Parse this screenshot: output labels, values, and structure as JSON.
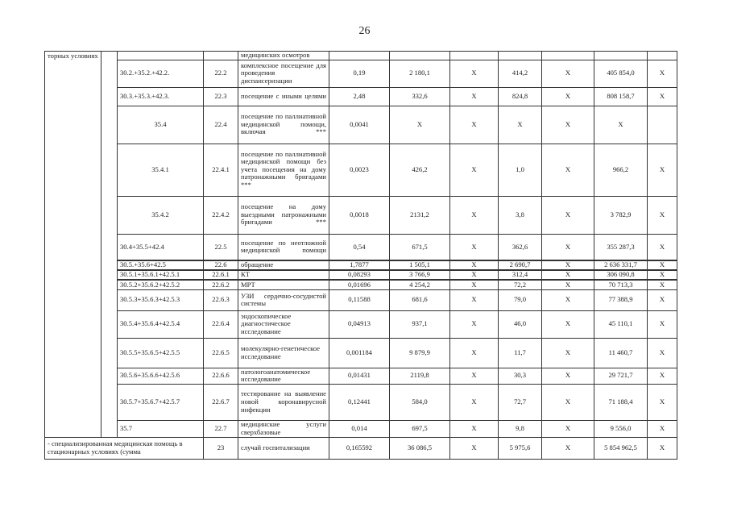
{
  "page_number": "26",
  "left_label": "торных условиях",
  "table": {
    "rows": [
      {
        "code": "",
        "num": "",
        "desc": "медицинских осмотров",
        "v": [
          "",
          "",
          "",
          "",
          "",
          "",
          "",
          ""
        ]
      },
      {
        "code": "30.2.+35.2.+42.2.",
        "num": "22.2",
        "desc": "комплексное посещение для проведения диспансеризации",
        "v": [
          "0,19",
          "2 180,1",
          "X",
          "414,2",
          "X",
          "405 854,0",
          "X"
        ]
      },
      {
        "code": "30.3.+35.3.+42.3.",
        "num": "22.3",
        "desc": "посещение с иными целями",
        "v": [
          "2,48",
          "332,6",
          "X",
          "824,8",
          "X",
          "808 158,7",
          "X"
        ]
      },
      {
        "code": "35.4",
        "num": "22.4",
        "desc": "посещение по паллиативной медицинской помощи, включая ***",
        "v": [
          "0,0041",
          "X",
          "X",
          "X",
          "X",
          "X",
          ""
        ],
        "center": true
      },
      {
        "code": "35.4.1",
        "num": "22.4.1",
        "desc": "посещение по паллиативной медицинской помощи без учета посещения на дому патронажными бригадами ***",
        "v": [
          "0,0023",
          "426,2",
          "X",
          "1,0",
          "X",
          "966,2",
          "X"
        ],
        "center": true
      },
      {
        "code": "35.4.2",
        "num": "22.4.2",
        "desc": "посещение на дому выездными патронажными бригадами ***",
        "v": [
          "0,0018",
          "2131,2",
          "X",
          "3,8",
          "X",
          "3 782,9",
          "X"
        ],
        "center": true
      },
      {
        "code": "30.4+35.5+42.4",
        "num": "22.5",
        "desc": "посещение по неотложной медицинской помощи",
        "v": [
          "0,54",
          "671,5",
          "X",
          "362,6",
          "X",
          "355 287,3",
          "X"
        ]
      },
      {
        "code": "30.5.+35.6+42.5",
        "num": "22.6",
        "desc": "обращение",
        "v": [
          "1,7877",
          "1 505,1",
          "X",
          "2 690,7",
          "X",
          "2 636 331,7",
          "X"
        ]
      },
      {
        "code": "30.5.1+35.6.1+42.5.1",
        "num": "22.6.1",
        "desc": "КТ",
        "v": [
          "0,08293",
          "3 766,9",
          "X",
          "312,4",
          "X",
          "306 090,8",
          "X"
        ]
      },
      {
        "code": "30.5.2+35.6.2+42.5.2",
        "num": "22.6.2",
        "desc": "МРТ",
        "v": [
          "0,01696",
          "4 254,2",
          "X",
          "72,2",
          "X",
          "70 713,3",
          "X"
        ]
      },
      {
        "code": "30.5.3+35.6.3+42.5.3",
        "num": "22.6.3",
        "desc": "УЗИ сердечно-сосудистой системы",
        "v": [
          "0,11588",
          "681,6",
          "X",
          "79,0",
          "X",
          "77 388,9",
          "X"
        ]
      },
      {
        "code": "30.5.4+35.6.4+42.5.4",
        "num": "22.6.4",
        "desc": "эндоскопическое диагностическое исследование",
        "v": [
          "0,04913",
          "937,1",
          "X",
          "46,0",
          "X",
          "45 110,1",
          "X"
        ]
      },
      {
        "code": "30.5.5+35.6.5+42.5.5",
        "num": "22.6.5",
        "desc": "молекулярно-генетическое исследование",
        "v": [
          "0,001184",
          "9 879,9",
          "X",
          "11,7",
          "X",
          "11 460,7",
          "X"
        ]
      },
      {
        "code": "30.5.6+35.6.6+42.5.6",
        "num": "22.6.6",
        "desc": "патологоанатомическое исследование",
        "v": [
          "0,01431",
          "2119,8",
          "X",
          "30,3",
          "X",
          "29 721,7",
          "X"
        ]
      },
      {
        "code": "30.5.7+35.6.7+42.5.7",
        "num": "22.6.7",
        "desc": "тестирование на выявление новой коронавирусной инфекции",
        "v": [
          "0,12441",
          "584,0",
          "X",
          "72,7",
          "X",
          "71 188,4",
          "X"
        ]
      },
      {
        "code": "35.7",
        "num": "22.7",
        "desc": "медицинские услуги сверхбазовые",
        "v": [
          "0,014",
          "697,5",
          "X",
          "9,8",
          "X",
          "9 556,0",
          "X"
        ]
      }
    ],
    "last_row": {
      "label": "- специализированная медицинская помощь в стационарных условиях (сумма",
      "num": "23",
      "desc": "случай госпитализации",
      "v": [
        "0,165592",
        "36 086,5",
        "X",
        "5 975,6",
        "X",
        "5 854 962,5",
        "X"
      ]
    }
  }
}
